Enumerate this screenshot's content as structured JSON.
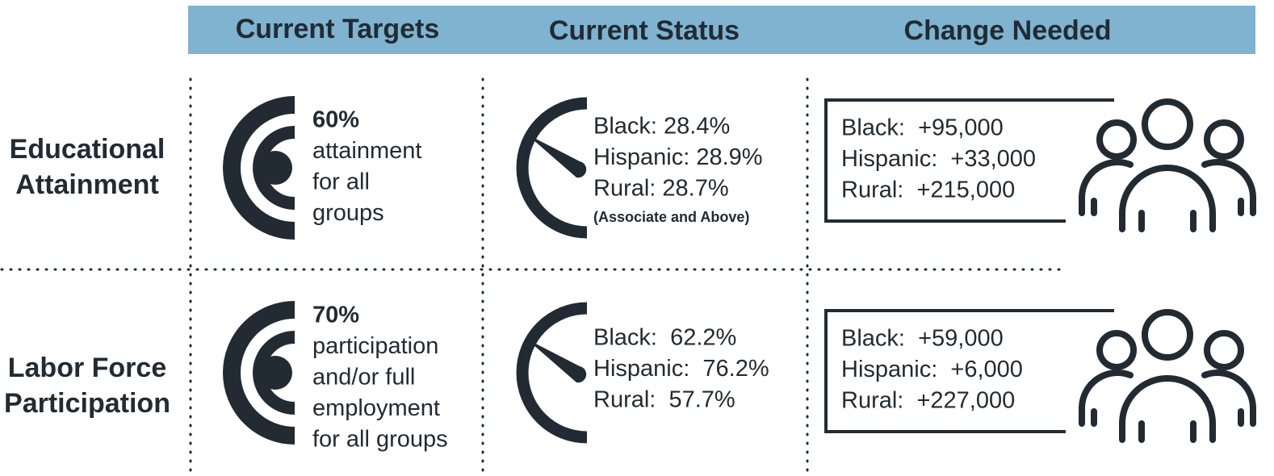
{
  "header": {
    "columns": [
      "Current Targets",
      "Current Status",
      "Change Needed"
    ]
  },
  "rows": [
    {
      "label": [
        "Educational",
        "Attainment"
      ],
      "target": [
        "60%",
        "attainment",
        "for all",
        "groups"
      ],
      "status": [
        "Black: 28.4%",
        "Hispanic: 28.9%",
        "Rural: 28.7%"
      ],
      "status_note": "(Associate and Above)",
      "change": [
        "Black:  +95,000",
        "Hispanic:  +33,000",
        "Rural:  +215,000"
      ]
    },
    {
      "label": [
        "Labor Force",
        "Participation"
      ],
      "target": [
        "70%",
        "participation",
        "and/or full",
        "employment",
        "for all groups"
      ],
      "status": [
        "Black:  62.2%",
        "Hispanic:  76.2%",
        "Rural:  57.7%"
      ],
      "change": [
        "Black:  +59,000",
        "Hispanic:  +6,000",
        "Rural:  +227,000"
      ]
    }
  ]
}
